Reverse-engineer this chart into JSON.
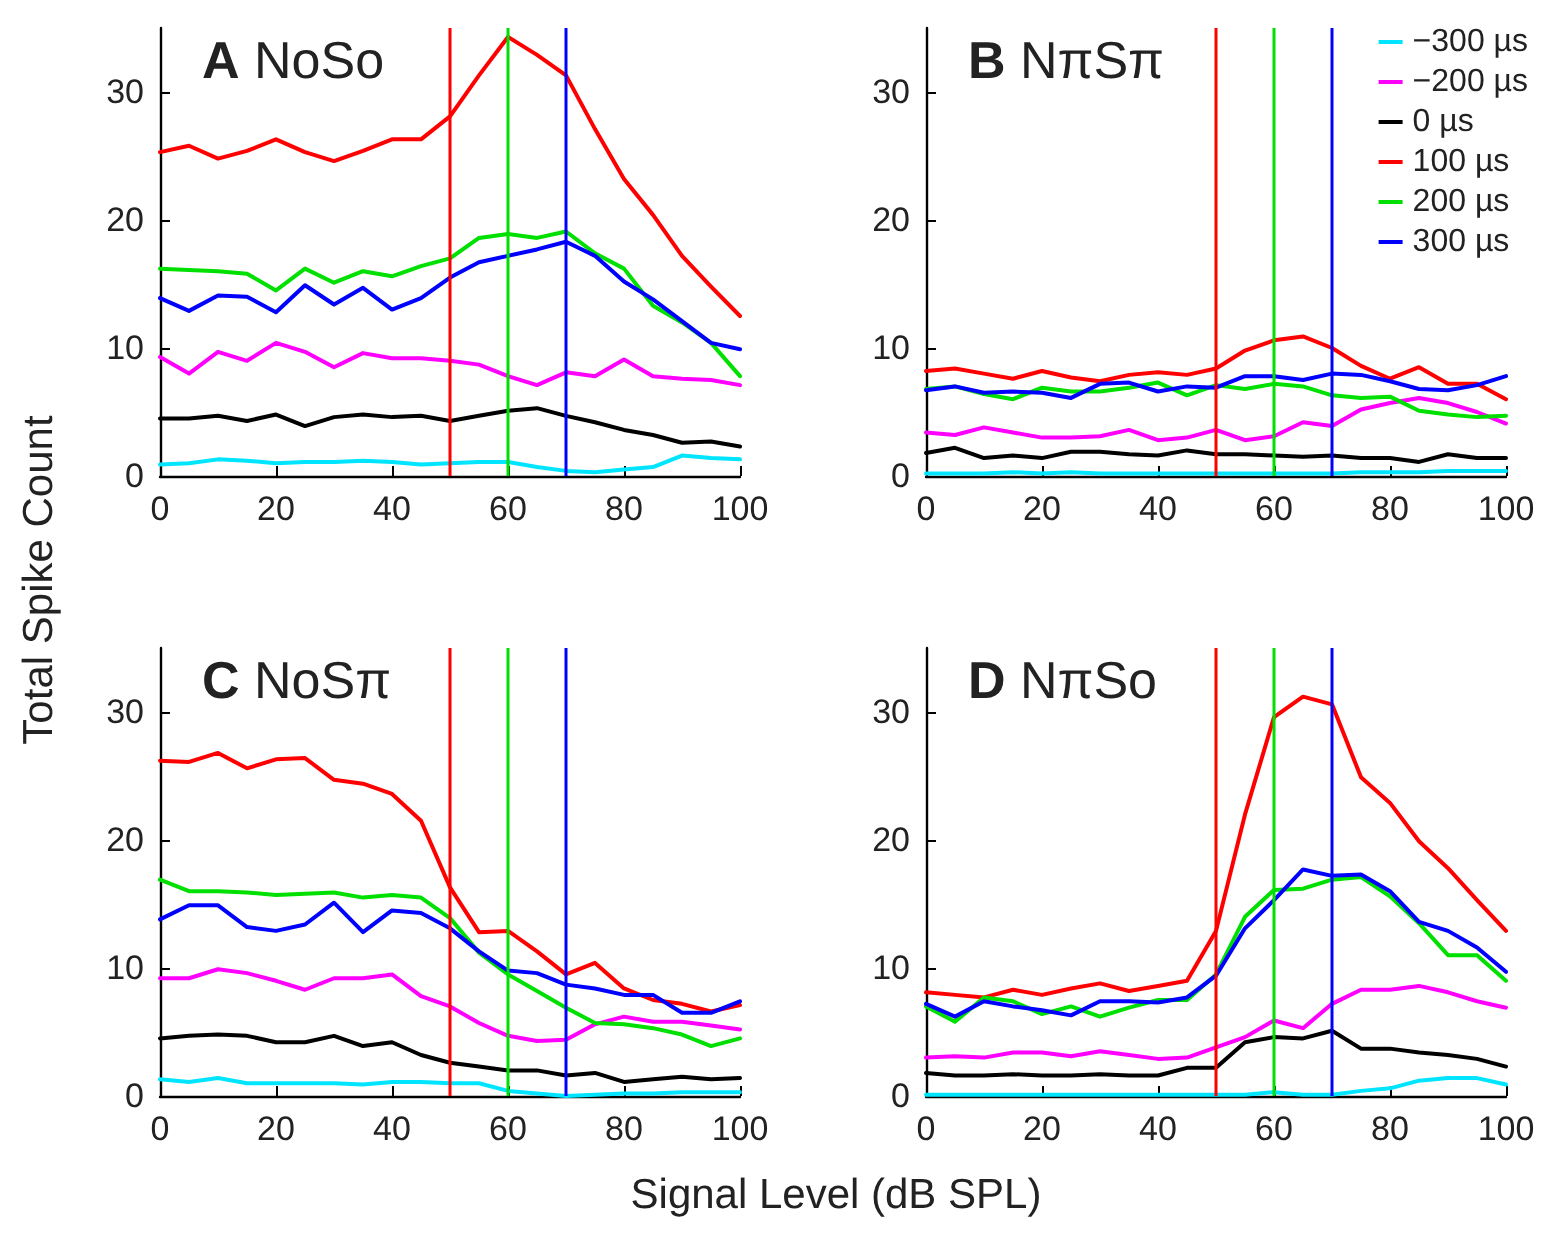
{
  "chart_data": [
    {
      "type": "line",
      "title": "A NoSo",
      "ylabel": "Total Spike Count",
      "xlim": [
        0,
        100
      ],
      "ylim": [
        0,
        35
      ],
      "xticks": [
        0,
        20,
        40,
        60,
        80,
        100
      ],
      "yticks": [
        0,
        10,
        20,
        30
      ],
      "grid": false,
      "legend": false,
      "x": [
        0,
        5,
        10,
        15,
        20,
        25,
        30,
        35,
        40,
        45,
        50,
        55,
        60,
        65,
        70,
        75,
        80,
        85,
        90,
        95,
        100
      ],
      "ref_lines": [
        {
          "axis": "x",
          "value": 50,
          "color": "#ff0000"
        },
        {
          "axis": "x",
          "value": 60,
          "color": "#00e000"
        },
        {
          "axis": "x",
          "value": 70,
          "color": "#0000ff"
        }
      ],
      "series": [
        {
          "color": "#00e5ff",
          "values": [
            0.9,
            1.0,
            1.3,
            1.2,
            1.0,
            1.1,
            1.1,
            1.2,
            1.1,
            0.9,
            1.0,
            1.1,
            1.1,
            0.7,
            0.4,
            0.3,
            0.5,
            0.7,
            1.6,
            1.4,
            1.3
          ]
        },
        {
          "color": "#ff00ff",
          "values": [
            9.3,
            8.0,
            9.7,
            9.0,
            10.4,
            9.7,
            8.5,
            9.6,
            9.2,
            9.2,
            9.0,
            8.7,
            7.8,
            7.1,
            8.1,
            7.8,
            9.1,
            7.8,
            7.6,
            7.5,
            7.1
          ]
        },
        {
          "color": "#000000",
          "values": [
            4.5,
            4.5,
            4.7,
            4.3,
            4.8,
            3.9,
            4.6,
            4.8,
            4.6,
            4.7,
            4.3,
            4.7,
            5.1,
            5.3,
            4.7,
            4.2,
            3.6,
            3.2,
            2.6,
            2.7,
            2.3
          ]
        },
        {
          "color": "#ff0000",
          "values": [
            25.3,
            25.8,
            24.8,
            25.4,
            26.3,
            25.3,
            24.6,
            25.4,
            26.3,
            26.3,
            28.1,
            31.3,
            34.3,
            32.9,
            31.3,
            27.1,
            23.2,
            20.4,
            17.2,
            14.8,
            12.5
          ]
        },
        {
          "color": "#00e000",
          "values": [
            16.2,
            16.1,
            16.0,
            15.8,
            14.5,
            16.2,
            15.1,
            16.0,
            15.6,
            16.4,
            17.0,
            18.6,
            18.9,
            18.6,
            19.1,
            17.4,
            16.2,
            13.3,
            12.0,
            10.4,
            7.8
          ]
        },
        {
          "color": "#0000ff",
          "values": [
            13.9,
            12.9,
            14.1,
            14.0,
            12.8,
            14.9,
            13.4,
            14.7,
            13.0,
            13.9,
            15.5,
            16.7,
            17.2,
            17.7,
            18.3,
            17.2,
            15.2,
            13.8,
            12.1,
            10.4,
            9.9
          ]
        }
      ]
    },
    {
      "type": "line",
      "title": "B NπSπ",
      "xlim": [
        0,
        100
      ],
      "ylim": [
        0,
        35
      ],
      "xticks": [
        0,
        20,
        40,
        60,
        80,
        100
      ],
      "yticks": [
        0,
        10,
        20,
        30
      ],
      "grid": false,
      "legend": "top right",
      "x": [
        0,
        5,
        10,
        15,
        20,
        25,
        30,
        35,
        40,
        45,
        50,
        55,
        60,
        65,
        70,
        75,
        80,
        85,
        90,
        95,
        100
      ],
      "ref_lines": [
        {
          "axis": "x",
          "value": 50,
          "color": "#ff0000"
        },
        {
          "axis": "x",
          "value": 60,
          "color": "#00e000"
        },
        {
          "axis": "x",
          "value": 70,
          "color": "#0000ff"
        }
      ],
      "series": [
        {
          "name": "−300 µs",
          "color": "#00e5ff",
          "values": [
            0.2,
            0.2,
            0.2,
            0.3,
            0.2,
            0.3,
            0.2,
            0.2,
            0.2,
            0.2,
            0.2,
            0.2,
            0.2,
            0.2,
            0.2,
            0.3,
            0.3,
            0.3,
            0.4,
            0.4,
            0.4
          ]
        },
        {
          "name": "−200 µs",
          "color": "#ff00ff",
          "values": [
            3.4,
            3.2,
            3.8,
            3.4,
            3.0,
            3.0,
            3.1,
            3.6,
            2.8,
            3.0,
            3.6,
            2.8,
            3.1,
            4.2,
            3.9,
            5.2,
            5.7,
            6.1,
            5.7,
            5.0,
            4.1
          ]
        },
        {
          "name": "0 µs",
          "color": "#000000",
          "values": [
            1.8,
            2.2,
            1.4,
            1.6,
            1.4,
            1.9,
            1.9,
            1.7,
            1.6,
            2.0,
            1.7,
            1.7,
            1.6,
            1.5,
            1.6,
            1.4,
            1.4,
            1.1,
            1.7,
            1.4,
            1.4
          ]
        },
        {
          "name": "100 µs",
          "color": "#ff0000",
          "values": [
            8.2,
            8.4,
            8.0,
            7.6,
            8.2,
            7.7,
            7.4,
            7.9,
            8.1,
            7.9,
            8.4,
            9.8,
            10.6,
            10.9,
            10.0,
            8.6,
            7.6,
            8.5,
            7.2,
            7.2,
            6.0
          ]
        },
        {
          "name": "200 µs",
          "color": "#00e000",
          "values": [
            6.8,
            7.0,
            6.4,
            6.0,
            6.9,
            6.6,
            6.6,
            6.9,
            7.3,
            6.3,
            7.1,
            6.8,
            7.2,
            7.0,
            6.3,
            6.1,
            6.2,
            5.1,
            4.8,
            4.6,
            4.7
          ]
        },
        {
          "name": "300 µs",
          "color": "#0000ff",
          "values": [
            6.7,
            7.0,
            6.5,
            6.6,
            6.5,
            6.1,
            7.2,
            7.3,
            6.6,
            7.0,
            6.9,
            7.8,
            7.8,
            7.5,
            8.0,
            7.9,
            7.4,
            6.8,
            6.7,
            7.1,
            7.8
          ]
        }
      ]
    },
    {
      "type": "line",
      "title": "C NoSπ",
      "xlabel": "Signal Level (dB SPL)",
      "xlim": [
        0,
        100
      ],
      "ylim": [
        0,
        35
      ],
      "xticks": [
        0,
        20,
        40,
        60,
        80,
        100
      ],
      "yticks": [
        0,
        10,
        20,
        30
      ],
      "grid": false,
      "legend": false,
      "x": [
        0,
        5,
        10,
        15,
        20,
        25,
        30,
        35,
        40,
        45,
        50,
        55,
        60,
        65,
        70,
        75,
        80,
        85,
        90,
        95,
        100
      ],
      "ref_lines": [
        {
          "axis": "x",
          "value": 50,
          "color": "#ff0000"
        },
        {
          "axis": "x",
          "value": 60,
          "color": "#00e000"
        },
        {
          "axis": "x",
          "value": 70,
          "color": "#0000ff"
        }
      ],
      "series": [
        {
          "color": "#00e5ff",
          "values": [
            1.3,
            1.1,
            1.4,
            1.0,
            1.0,
            1.0,
            1.0,
            0.9,
            1.1,
            1.1,
            1.0,
            1.0,
            0.4,
            0.2,
            0.0,
            0.1,
            0.2,
            0.2,
            0.3,
            0.3,
            0.3
          ]
        },
        {
          "color": "#ff00ff",
          "values": [
            9.2,
            9.2,
            9.9,
            9.6,
            9.0,
            8.3,
            9.2,
            9.2,
            9.5,
            7.8,
            7.0,
            5.7,
            4.7,
            4.3,
            4.4,
            5.6,
            6.2,
            5.8,
            5.8,
            5.5,
            5.2
          ]
        },
        {
          "color": "#000000",
          "values": [
            4.5,
            4.7,
            4.8,
            4.7,
            4.2,
            4.2,
            4.7,
            3.9,
            4.2,
            3.2,
            2.6,
            2.3,
            2.0,
            2.0,
            1.6,
            1.8,
            1.1,
            1.3,
            1.5,
            1.3,
            1.4
          ]
        },
        {
          "color": "#ff0000",
          "values": [
            26.2,
            26.1,
            26.8,
            25.6,
            26.3,
            26.4,
            24.7,
            24.4,
            23.6,
            21.5,
            16.3,
            12.8,
            12.9,
            11.3,
            9.5,
            10.4,
            8.4,
            7.5,
            7.2,
            6.6,
            7.1
          ]
        },
        {
          "color": "#00e000",
          "values": [
            16.9,
            16.0,
            16.0,
            15.9,
            15.7,
            15.8,
            15.9,
            15.5,
            15.7,
            15.5,
            13.9,
            11.2,
            9.5,
            8.2,
            6.9,
            5.7,
            5.6,
            5.3,
            4.8,
            3.9,
            4.5
          ]
        },
        {
          "color": "#0000ff",
          "values": [
            13.8,
            14.9,
            14.9,
            13.2,
            12.9,
            13.4,
            15.1,
            12.8,
            14.5,
            14.3,
            13.1,
            11.3,
            9.8,
            9.6,
            8.7,
            8.4,
            7.9,
            7.9,
            6.5,
            6.5,
            7.4
          ]
        }
      ]
    },
    {
      "type": "line",
      "title": "D NπSo",
      "xlim": [
        0,
        100
      ],
      "ylim": [
        0,
        35
      ],
      "xticks": [
        0,
        20,
        40,
        60,
        80,
        100
      ],
      "yticks": [
        0,
        10,
        20,
        30
      ],
      "grid": false,
      "legend": false,
      "x": [
        0,
        5,
        10,
        15,
        20,
        25,
        30,
        35,
        40,
        45,
        50,
        55,
        60,
        65,
        70,
        75,
        80,
        85,
        90,
        95,
        100
      ],
      "ref_lines": [
        {
          "axis": "x",
          "value": 50,
          "color": "#ff0000"
        },
        {
          "axis": "x",
          "value": 60,
          "color": "#00e000"
        },
        {
          "axis": "x",
          "value": 70,
          "color": "#0000ff"
        }
      ],
      "series": [
        {
          "color": "#00e5ff",
          "values": [
            0.1,
            0.1,
            0.1,
            0.1,
            0.1,
            0.1,
            0.1,
            0.1,
            0.1,
            0.1,
            0.1,
            0.1,
            0.3,
            0.1,
            0.1,
            0.4,
            0.6,
            1.2,
            1.4,
            1.4,
            0.9
          ]
        },
        {
          "color": "#ff00ff",
          "values": [
            3.0,
            3.1,
            3.0,
            3.4,
            3.4,
            3.1,
            3.5,
            3.2,
            2.9,
            3.0,
            3.8,
            4.6,
            5.9,
            5.3,
            7.2,
            8.3,
            8.3,
            8.6,
            8.1,
            7.4,
            6.9
          ]
        },
        {
          "color": "#000000",
          "values": [
            1.8,
            1.6,
            1.6,
            1.7,
            1.6,
            1.6,
            1.7,
            1.6,
            1.6,
            2.2,
            2.2,
            4.2,
            4.6,
            4.5,
            5.1,
            3.7,
            3.7,
            3.4,
            3.2,
            2.9,
            2.3
          ]
        },
        {
          "color": "#ff0000",
          "values": [
            8.1,
            7.9,
            7.7,
            8.3,
            7.9,
            8.4,
            8.8,
            8.2,
            8.6,
            9.0,
            12.9,
            22.0,
            29.6,
            31.2,
            30.6,
            24.9,
            22.9,
            19.9,
            17.8,
            15.3,
            12.9
          ]
        },
        {
          "color": "#00e000",
          "values": [
            7.0,
            5.8,
            7.7,
            7.4,
            6.4,
            7.0,
            6.2,
            6.9,
            7.5,
            7.5,
            9.5,
            14.0,
            16.1,
            16.2,
            16.9,
            17.1,
            15.6,
            13.5,
            11.0,
            11.0,
            9.0
          ]
        },
        {
          "color": "#0000ff",
          "values": [
            7.2,
            6.2,
            7.4,
            7.0,
            6.7,
            6.3,
            7.4,
            7.4,
            7.3,
            7.7,
            9.4,
            13.1,
            15.3,
            17.7,
            17.2,
            17.3,
            16.0,
            13.6,
            12.9,
            11.6,
            9.7
          ]
        }
      ]
    }
  ]
}
